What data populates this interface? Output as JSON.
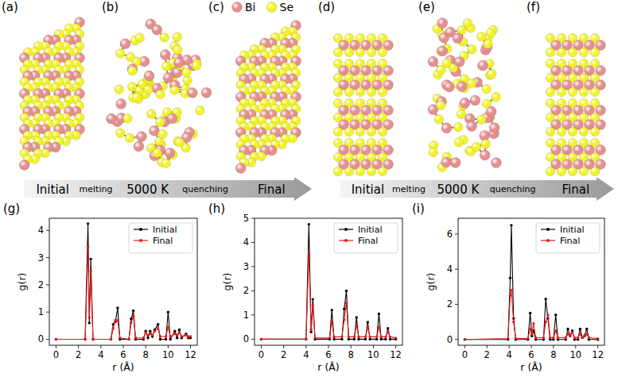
{
  "panel_labels": [
    "(a)",
    "(b)",
    "(c)",
    "(d)",
    "(e)",
    "(f)",
    "(g)",
    "(h)",
    "(i)"
  ],
  "species": [
    {
      "name": "Bi",
      "color": "#e58f8f"
    },
    {
      "name": "Se",
      "color": "#f2f22a"
    }
  ],
  "arrows": [
    {
      "stages": [
        "Initial",
        "melting",
        "5000 K",
        "quenching",
        "Final"
      ]
    },
    {
      "stages": [
        "Initial",
        "melting",
        "5000 K",
        "quenching",
        "Final"
      ]
    }
  ],
  "chart_data": [
    {
      "type": "line",
      "x_label": "r (Å)",
      "y_label": "g(r)",
      "legend": "upper right",
      "xlim": [
        -0.6,
        12.6
      ],
      "ylim": [
        -0.22,
        4.45
      ],
      "xticks": [
        0,
        2,
        4,
        6,
        8,
        10,
        12
      ],
      "yticks": [
        0,
        1,
        2,
        3,
        4
      ],
      "x": [
        0,
        2.6,
        2.85,
        2.97,
        3.1,
        3.3,
        4.9,
        5.1,
        5.3,
        5.5,
        5.7,
        6.5,
        6.7,
        6.9,
        7.1,
        7.8,
        8.0,
        8.2,
        8.4,
        8.6,
        8.8,
        9.1,
        9.3,
        9.8,
        10.0,
        10.2,
        10.6,
        10.8,
        11.0,
        11.2,
        11.6,
        11.8,
        12
      ],
      "series": [
        {
          "name": "Initial",
          "color": "#000000",
          "marker": "circle",
          "line_style": "solid",
          "values": [
            0,
            0,
            4.25,
            0.6,
            2.95,
            0,
            0,
            0.55,
            0.65,
            1.15,
            0,
            0,
            0.75,
            1.05,
            0,
            0,
            0.3,
            0.05,
            0.3,
            0.1,
            0.35,
            0.55,
            0,
            0,
            1.0,
            0,
            0.3,
            0.05,
            0.35,
            0.05,
            0.2,
            0.05,
            0.05
          ]
        },
        {
          "name": "Final",
          "color": "#e41a1c",
          "marker": "circle",
          "line_style": "solid",
          "values": [
            0,
            0,
            3.4,
            0.8,
            2.5,
            0,
            0,
            0.4,
            0.7,
            0.7,
            0.05,
            0,
            0.6,
            0.85,
            0.05,
            0.05,
            0.25,
            0.15,
            0.2,
            0.15,
            0.3,
            0.4,
            0.1,
            0.1,
            0.45,
            0.1,
            0.2,
            0.15,
            0.25,
            0.1,
            0.15,
            0.1,
            0.1
          ]
        }
      ]
    },
    {
      "type": "line",
      "x_label": "r (Å)",
      "y_label": "g(r)",
      "legend": "upper right",
      "xlim": [
        -0.6,
        12.6
      ],
      "ylim": [
        -0.25,
        5.0
      ],
      "xticks": [
        0,
        2,
        4,
        6,
        8,
        10,
        12
      ],
      "yticks": [
        0,
        1,
        2,
        3,
        4,
        5
      ],
      "x": [
        0,
        4.0,
        4.25,
        4.45,
        4.6,
        4.8,
        6.1,
        6.3,
        6.5,
        7.2,
        7.4,
        7.6,
        7.8,
        8.3,
        8.5,
        8.7,
        9.3,
        9.5,
        9.7,
        10.3,
        10.5,
        10.7,
        11.1,
        11.3,
        11.5,
        12
      ],
      "series": [
        {
          "name": "Initial",
          "color": "#000000",
          "marker": "circle",
          "line_style": "solid",
          "values": [
            0,
            0,
            4.75,
            0.3,
            1.65,
            0,
            0,
            1.2,
            0,
            0,
            1.25,
            2.0,
            0,
            0,
            0.9,
            0,
            0,
            0.7,
            0,
            0,
            1.05,
            0,
            0,
            0.45,
            0,
            0
          ]
        },
        {
          "name": "Final",
          "color": "#e41a1c",
          "marker": "circle",
          "line_style": "solid",
          "values": [
            0,
            0,
            3.6,
            0.4,
            1.4,
            0.05,
            0.05,
            0.75,
            0.1,
            0.1,
            0.8,
            1.5,
            0.1,
            0.1,
            0.6,
            0.1,
            0.1,
            0.5,
            0.1,
            0.1,
            0.5,
            0.1,
            0.1,
            0.3,
            0.1,
            0.05
          ]
        }
      ]
    },
    {
      "type": "line",
      "x_label": "r (Å)",
      "y_label": "g(r)",
      "legend": "upper right",
      "xlim": [
        -0.6,
        12.6
      ],
      "ylim": [
        -0.33,
        6.9
      ],
      "xticks": [
        0,
        2,
        4,
        6,
        8,
        10,
        12
      ],
      "yticks": [
        0,
        2,
        4,
        6
      ],
      "x": [
        0,
        3.9,
        4.1,
        4.2,
        4.4,
        4.6,
        5.7,
        5.9,
        6.05,
        6.2,
        6.4,
        7.1,
        7.3,
        7.5,
        7.7,
        8.0,
        8.2,
        8.4,
        9.1,
        9.3,
        9.5,
        9.7,
        9.9,
        10.2,
        10.4,
        10.6,
        10.8,
        11.0,
        11.2,
        12
      ],
      "series": [
        {
          "name": "Initial",
          "color": "#000000",
          "marker": "circle",
          "line_style": "solid",
          "values": [
            0,
            0,
            3.5,
            6.5,
            1.2,
            0,
            0,
            1.5,
            0.2,
            0.5,
            0,
            0,
            2.3,
            1.2,
            0,
            0,
            1.4,
            0,
            0,
            0.6,
            0.2,
            0.5,
            0,
            0,
            0.6,
            0.1,
            0.2,
            0.6,
            0,
            0
          ]
        },
        {
          "name": "Final",
          "color": "#e41a1c",
          "marker": "circle",
          "line_style": "solid",
          "values": [
            0,
            0.05,
            2.5,
            2.8,
            1.0,
            0.05,
            0.05,
            0.6,
            0.3,
            0.9,
            0.1,
            0.1,
            1.0,
            1.4,
            0.1,
            0.1,
            0.5,
            0.1,
            0.1,
            0.3,
            0.2,
            0.4,
            0.1,
            0.1,
            0.3,
            0.1,
            0.2,
            0.3,
            0.1,
            0.05
          ]
        }
      ]
    }
  ]
}
